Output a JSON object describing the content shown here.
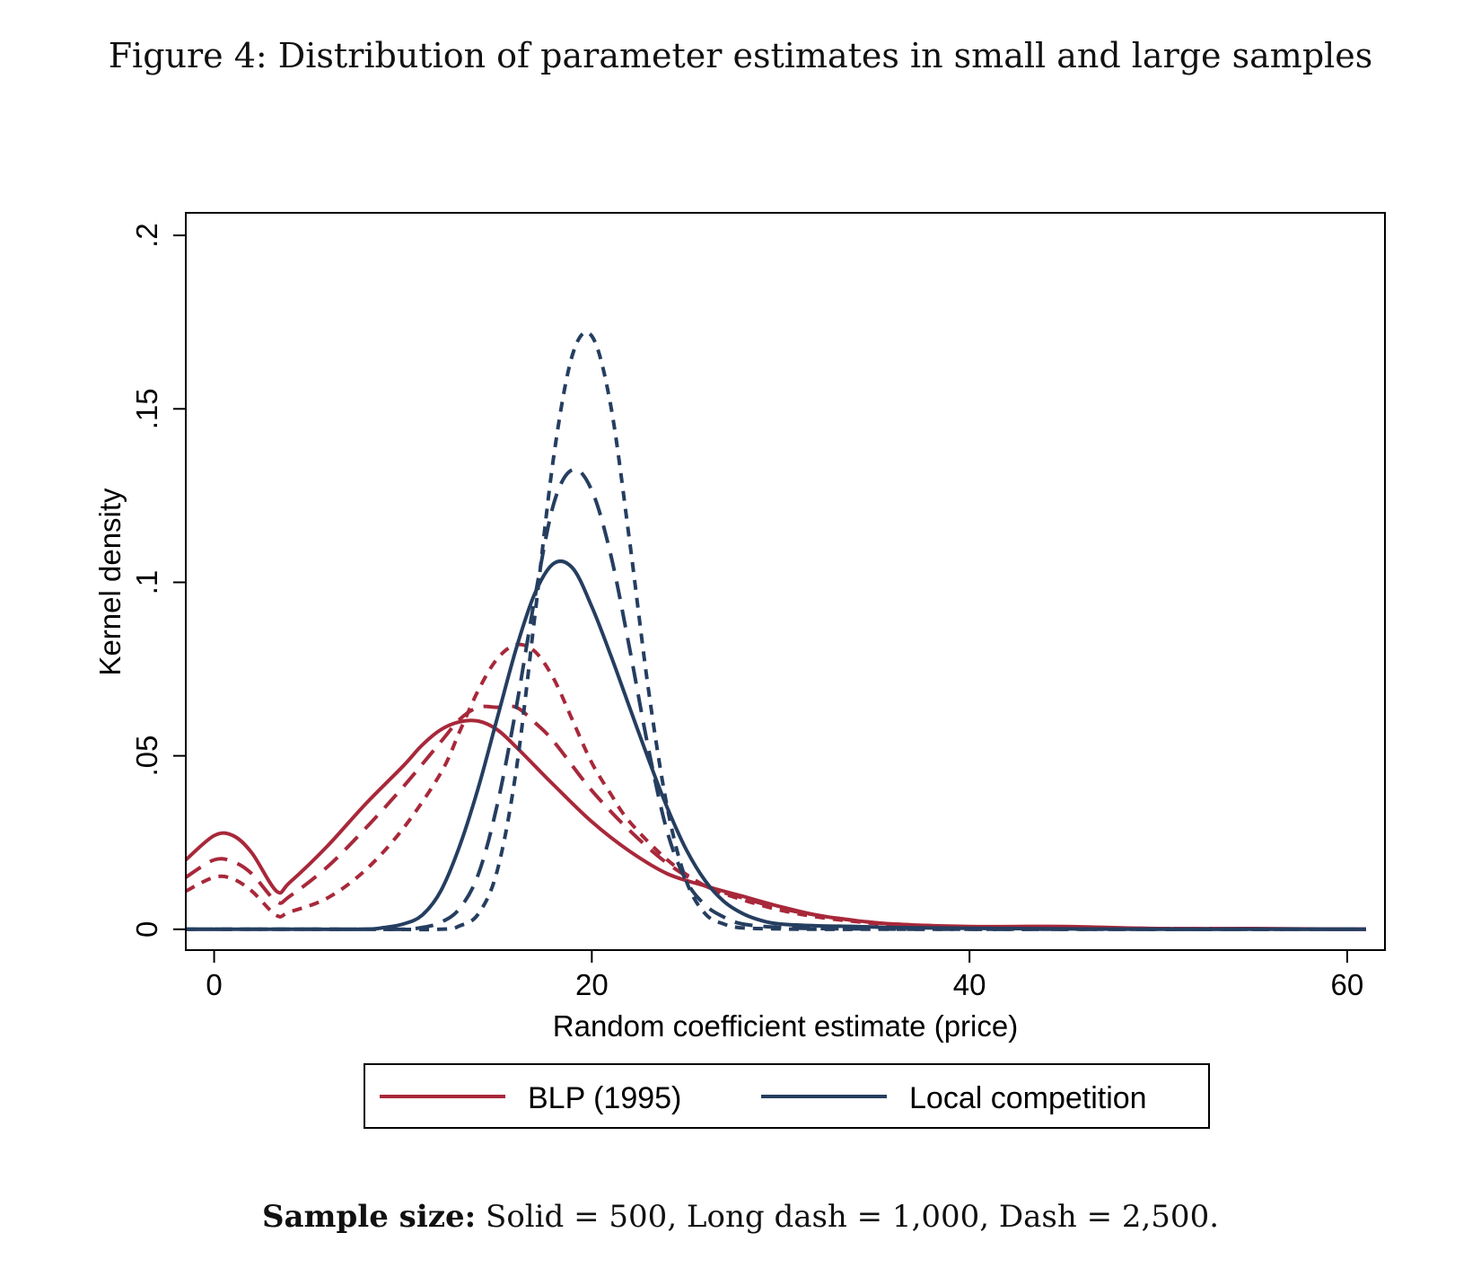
{
  "figure": {
    "title": "Figure 4: Distribution of parameter estimates in small and large samples",
    "caption_bold": "Sample size:",
    "caption_rest": " Solid = 500, Long dash = 1,000, Dash = 2,500."
  },
  "chart_data": {
    "type": "line",
    "xlabel": "Random coefficient estimate (price)",
    "ylabel": "Kernel density",
    "xlim": [
      -1.5,
      62
    ],
    "ylim": [
      -0.006,
      0.2065
    ],
    "xticks": [
      {
        "value": 0,
        "label": "0"
      },
      {
        "value": 20,
        "label": "20"
      },
      {
        "value": 40,
        "label": "40"
      },
      {
        "value": 60,
        "label": "60"
      }
    ],
    "yticks": [
      {
        "value": 0,
        "label": "0"
      },
      {
        "value": 0.05,
        "label": ".05"
      },
      {
        "value": 0.1,
        "label": ".1"
      },
      {
        "value": 0.15,
        "label": ".15"
      },
      {
        "value": 0.2,
        "label": ".2"
      }
    ],
    "grid": false,
    "legend": {
      "position": "bottom",
      "entries": [
        {
          "label": "BLP (1995)",
          "color": "#a8283a"
        },
        {
          "label": "Local competition",
          "color": "#253e60"
        }
      ]
    },
    "colors": {
      "blp": "#a8283a",
      "local": "#253e60"
    },
    "series": [
      {
        "model": "BLP (1995)",
        "style": "solid",
        "color": "#a8283a",
        "x": [
          -1.5,
          0,
          1,
          2,
          3.3,
          4,
          6,
          8,
          10,
          11,
          12,
          13,
          14,
          15,
          16,
          17,
          18,
          20,
          22,
          24,
          26,
          28,
          30,
          32,
          34,
          36,
          40,
          45,
          50,
          55,
          61
        ],
        "y": [
          0.02,
          0.027,
          0.027,
          0.022,
          0.011,
          0.0135,
          0.024,
          0.036,
          0.047,
          0.053,
          0.0575,
          0.0598,
          0.06,
          0.0575,
          0.0525,
          0.047,
          0.0415,
          0.031,
          0.0225,
          0.016,
          0.0125,
          0.0095,
          0.0065,
          0.004,
          0.0025,
          0.0015,
          0.0008,
          0.0008,
          0.0002,
          0.0002,
          0
        ]
      },
      {
        "model": "BLP (1995)",
        "style": "longdash",
        "color": "#a8283a",
        "x": [
          -1.5,
          0,
          1,
          2,
          3.3,
          4,
          6,
          8,
          10,
          12,
          13,
          14,
          15,
          16,
          17,
          18,
          20,
          22,
          24,
          26,
          28,
          30,
          32,
          34,
          36,
          40,
          45,
          50,
          55,
          61
        ],
        "y": [
          0.015,
          0.02,
          0.0195,
          0.016,
          0.008,
          0.0095,
          0.018,
          0.029,
          0.041,
          0.054,
          0.0605,
          0.064,
          0.064,
          0.064,
          0.0595,
          0.054,
          0.04,
          0.0285,
          0.019,
          0.0125,
          0.009,
          0.006,
          0.004,
          0.0025,
          0.0015,
          0.0007,
          0.0005,
          0.0002,
          0.0001,
          0
        ]
      },
      {
        "model": "BLP (1995)",
        "style": "dash",
        "color": "#a8283a",
        "x": [
          -1.5,
          0,
          1,
          2,
          3.3,
          4,
          6,
          8,
          10,
          12,
          13,
          14,
          15,
          16,
          17,
          18,
          19,
          20,
          21,
          22,
          24,
          26,
          28,
          30,
          32,
          34,
          36,
          40,
          45,
          50,
          55,
          61
        ],
        "y": [
          0.011,
          0.015,
          0.0145,
          0.011,
          0.004,
          0.005,
          0.009,
          0.017,
          0.029,
          0.045,
          0.057,
          0.069,
          0.078,
          0.082,
          0.08,
          0.072,
          0.06,
          0.048,
          0.039,
          0.031,
          0.02,
          0.0125,
          0.0085,
          0.0055,
          0.0035,
          0.0022,
          0.0013,
          0.0006,
          0.0004,
          0.0002,
          0.0001,
          0
        ]
      },
      {
        "model": "Local competition",
        "style": "solid",
        "color": "#253e60",
        "x": [
          -1.5,
          5,
          8,
          9,
          10,
          11,
          12,
          13,
          14,
          15,
          16,
          17,
          18,
          19,
          20,
          21,
          22,
          23,
          24,
          25,
          26,
          27,
          28,
          29,
          30,
          32,
          34,
          36,
          40,
          45,
          50,
          55,
          61
        ],
        "y": [
          0,
          0,
          0,
          0.0005,
          0.0015,
          0.004,
          0.011,
          0.024,
          0.041,
          0.061,
          0.081,
          0.097,
          0.1055,
          0.104,
          0.093,
          0.079,
          0.064,
          0.049,
          0.035,
          0.023,
          0.014,
          0.008,
          0.0045,
          0.0025,
          0.0015,
          0.001,
          0.0008,
          0.0005,
          0.0003,
          0.0001,
          0,
          0,
          0
        ]
      },
      {
        "model": "Local competition",
        "style": "longdash",
        "color": "#253e60",
        "x": [
          -1.5,
          8,
          10,
          11,
          12,
          13,
          14,
          15,
          16,
          17,
          18,
          19,
          20,
          21,
          22,
          23,
          24,
          25,
          26,
          27,
          28,
          30,
          32,
          35,
          40,
          61
        ],
        "y": [
          0,
          0,
          0,
          0.0005,
          0.002,
          0.006,
          0.016,
          0.036,
          0.064,
          0.096,
          0.123,
          0.1325,
          0.1265,
          0.108,
          0.081,
          0.052,
          0.028,
          0.014,
          0.007,
          0.0035,
          0.0015,
          0.0005,
          0.0002,
          0.0001,
          0,
          0
        ]
      },
      {
        "model": "Local competition",
        "style": "dash",
        "color": "#253e60",
        "x": [
          -1.5,
          8,
          12,
          13,
          14,
          15,
          16,
          17,
          18,
          19,
          20,
          21,
          22,
          23,
          24,
          25,
          26,
          27,
          28,
          30,
          32,
          35,
          40,
          61
        ],
        "y": [
          0,
          0,
          0,
          0.001,
          0.0045,
          0.017,
          0.046,
          0.091,
          0.137,
          0.166,
          0.171,
          0.151,
          0.112,
          0.069,
          0.035,
          0.014,
          0.0045,
          0.0015,
          0.0004,
          0.0001,
          0,
          0,
          0,
          0
        ]
      }
    ]
  }
}
